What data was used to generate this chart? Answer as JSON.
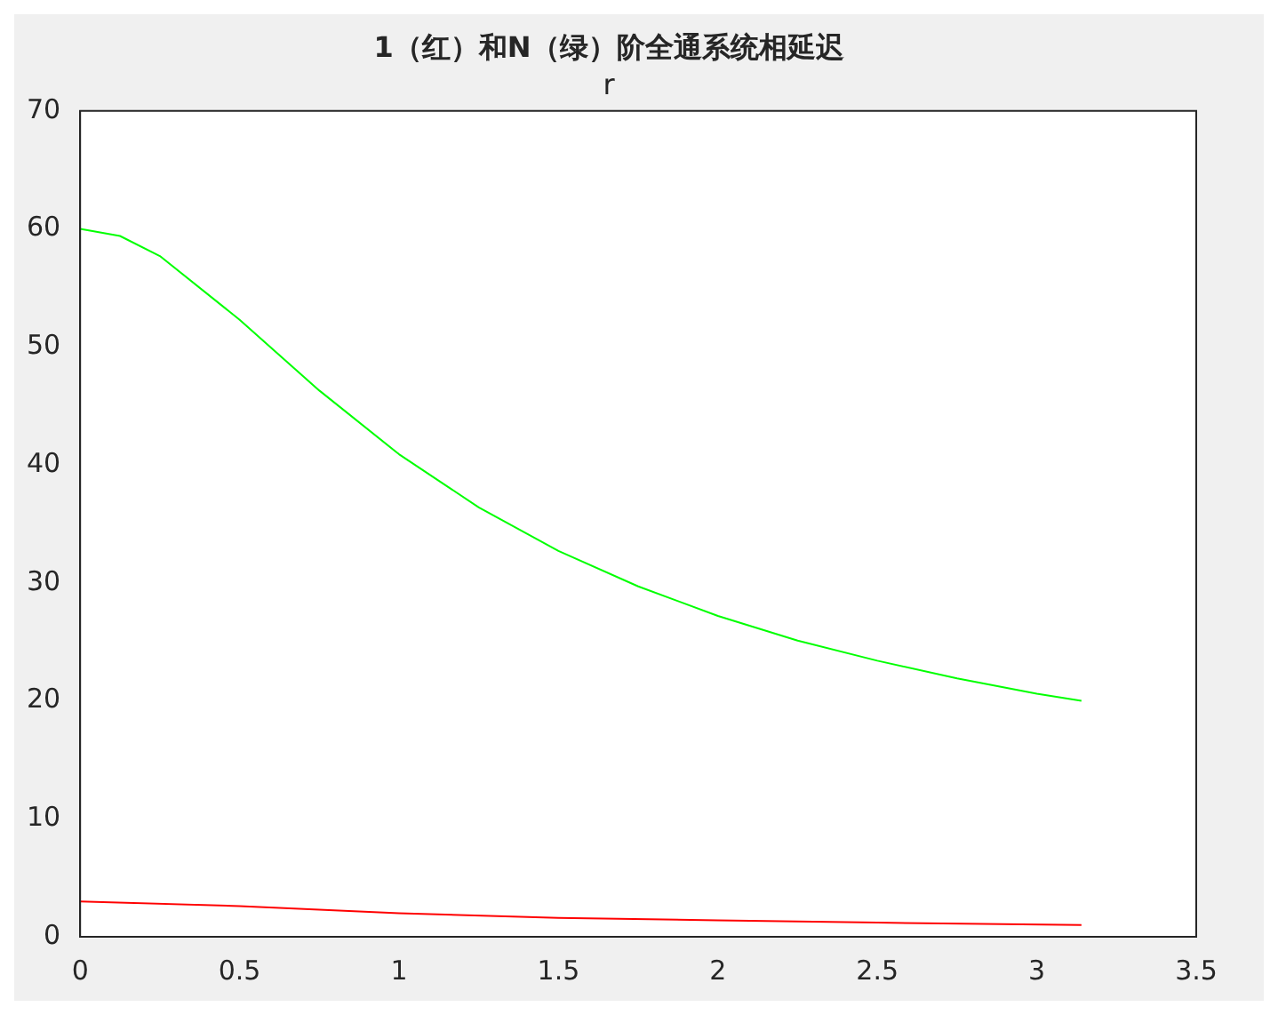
{
  "chart_data": {
    "type": "line",
    "title": "1（红）和N（绿）阶全通系统相延迟",
    "subtitle": "r",
    "xlim": [
      0,
      3.5
    ],
    "xticks": [
      0,
      0.5,
      1,
      1.5,
      2,
      2.5,
      3,
      3.5
    ],
    "ylim": [
      0,
      70
    ],
    "yticks": [
      0,
      10,
      20,
      30,
      40,
      50,
      60,
      70
    ],
    "grid": false,
    "legend": false,
    "marker": "none",
    "line_style": "solid",
    "series": [
      {
        "color": "#ff0000",
        "x": [
          0,
          0.5,
          1,
          1.5,
          2,
          2.5,
          3.14
        ],
        "values": [
          3,
          2.6,
          2,
          1.6,
          1.4,
          1.2,
          1
        ]
      },
      {
        "color": "#00ff00",
        "x": [
          0,
          0.125,
          0.25,
          0.5,
          0.75,
          1,
          1.25,
          1.5,
          1.75,
          2,
          2.25,
          2.5,
          2.75,
          3,
          3.14
        ],
        "values": [
          60,
          59.4,
          57.7,
          52.3,
          46.3,
          40.9,
          36.4,
          32.7,
          29.7,
          27.2,
          25.1,
          23.4,
          21.9,
          20.6,
          20
        ]
      }
    ]
  }
}
